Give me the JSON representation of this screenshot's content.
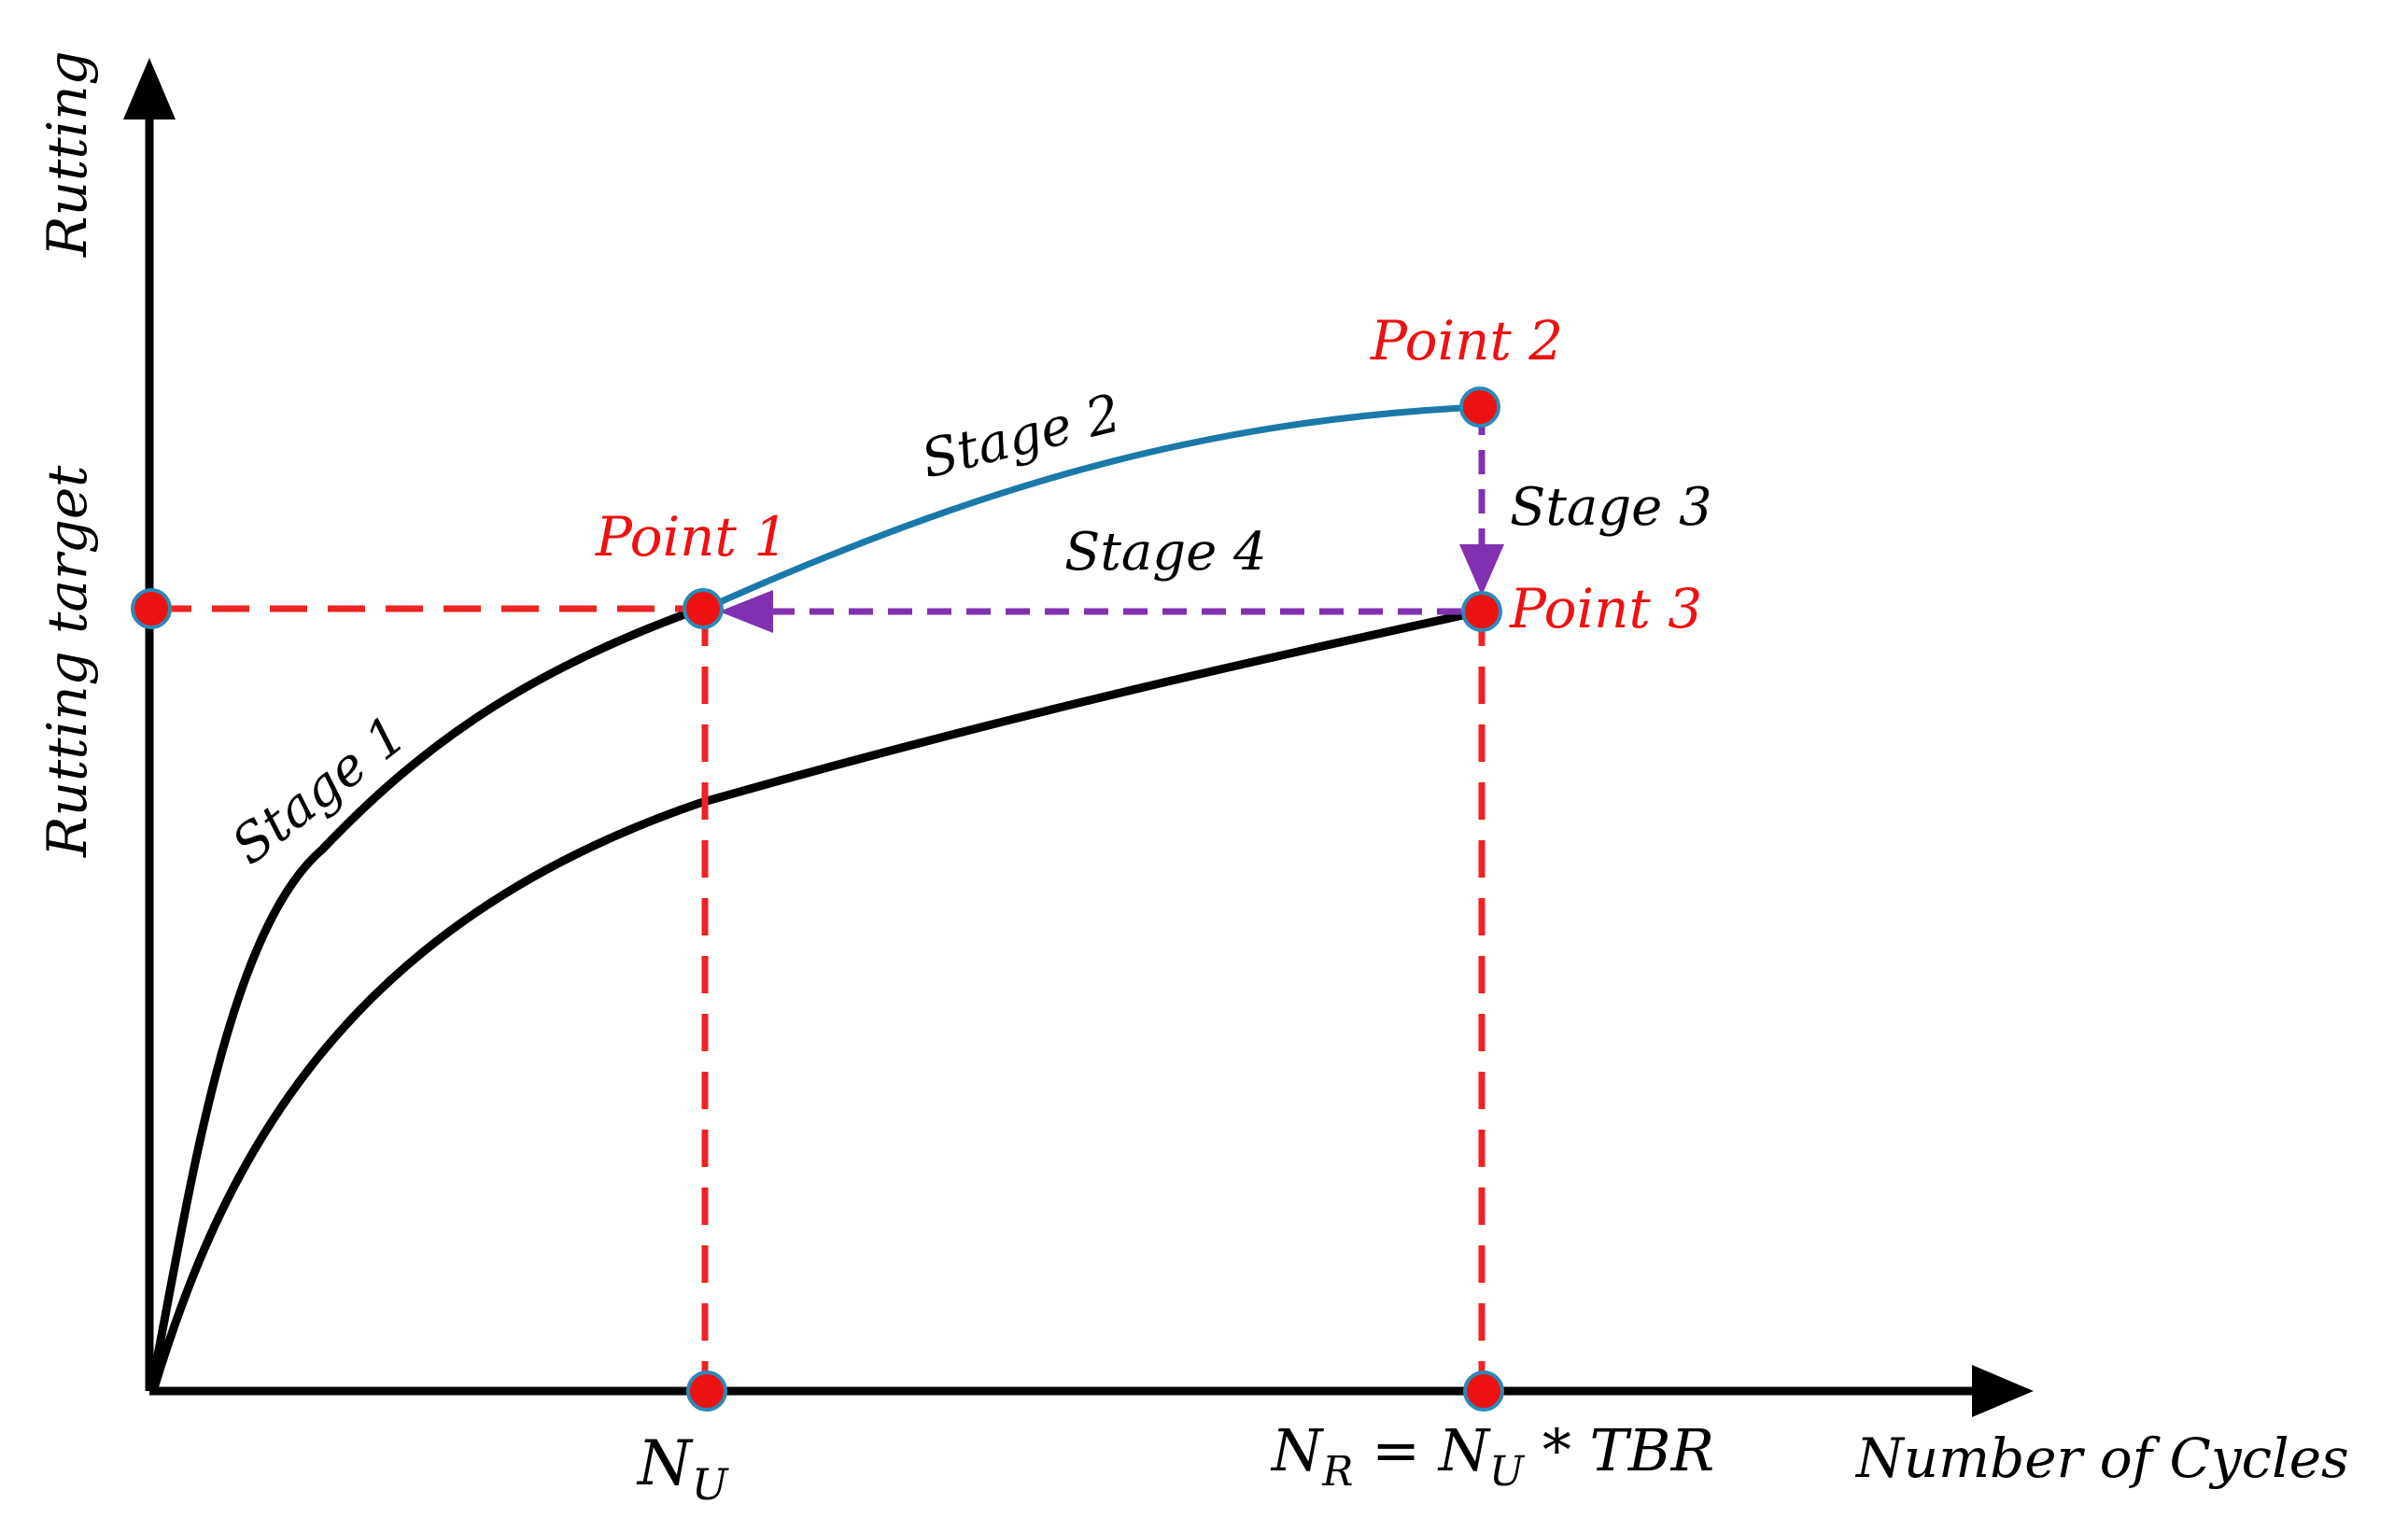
{
  "axes": {
    "y_label": "Rutting",
    "x_label": "Number of Cycles",
    "target_label": "Rutting target"
  },
  "stages": {
    "stage1": "Stage 1",
    "stage2": "Stage 2",
    "stage3": "Stage 3",
    "stage4": "Stage 4"
  },
  "points": {
    "point1": "Point 1",
    "point2": "Point 2",
    "point3": "Point 3"
  },
  "x_marks": {
    "nu_base": "N",
    "nu_sub": "U",
    "nr_base": "N",
    "nr_sub": "R",
    "nr_eq": " = ",
    "nr_base2": "N",
    "nr_sub2": "U",
    "nr_tail": " * TBR"
  },
  "colors": {
    "axis": "#000000",
    "curve": "#000000",
    "stage2_curve": "#1a79a8",
    "guide": "#ee2222",
    "stage_arrows": "#8030b0",
    "point_fill": "#ee1111",
    "point_stroke": "#2a8ab8",
    "point_label": "#ee1111"
  }
}
